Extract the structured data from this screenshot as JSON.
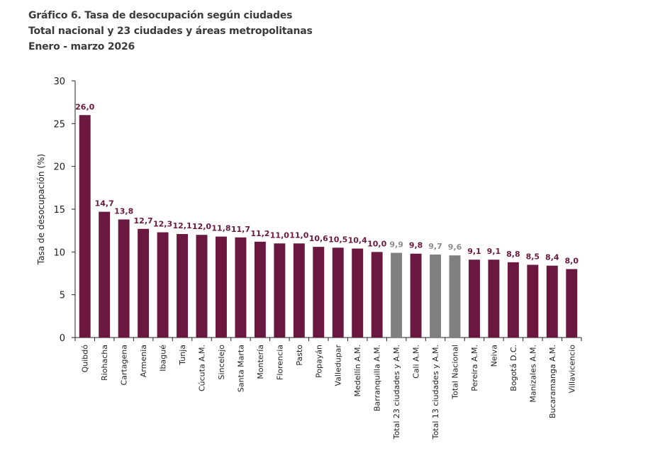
{
  "header": {
    "title_line1": "Gráfico 6. Tasa de desocupación según ciudades",
    "title_line2": "Total nacional y 23 ciudades y áreas metropolitanas",
    "title_line3": "Enero - marzo 2026"
  },
  "colors": {
    "city_bar": "#6b1840",
    "total_bar": "#808080",
    "city_label": "#6b1840",
    "total_label": "#8c8c8c",
    "axis": "#222222"
  },
  "chart_data": {
    "type": "bar",
    "title": "Gráfico 6. Tasa de desocupación según ciudades",
    "subtitle": "Total nacional y 23 ciudades y áreas metropolitanas — Enero - marzo 2026",
    "xlabel": "",
    "ylabel": "Tasa de desocupación (%)",
    "ylim": [
      0,
      30
    ],
    "yticks": [
      0,
      5,
      10,
      15,
      20,
      25,
      30
    ],
    "grid": false,
    "legend": "none",
    "categories": [
      "Quibdó",
      "Riohacha",
      "Cartagena",
      "Armenia",
      "Ibagué",
      "Tunja",
      "Cúcuta A.M.",
      "Sincelejo",
      "Santa Marta",
      "Montería",
      "Florencia",
      "Pasto",
      "Popayán",
      "Valledupar",
      "Medellín A.M.",
      "Barranquilla A.M.",
      "Total 23 ciudades y A.M.",
      "Cali A.M.",
      "Total 13 ciudades y A.M.",
      "Total Nacional",
      "Pereira A.M.",
      "Neiva",
      "Bogotá D.C.",
      "Manizales A.M.",
      "Bucaramanga A.M.",
      "Villavicencio"
    ],
    "values": [
      26.0,
      14.7,
      13.8,
      12.7,
      12.3,
      12.1,
      12.0,
      11.8,
      11.7,
      11.2,
      11.0,
      11.0,
      10.6,
      10.5,
      10.4,
      10.0,
      9.9,
      9.8,
      9.7,
      9.6,
      9.1,
      9.1,
      8.8,
      8.5,
      8.4,
      8.0
    ],
    "value_labels": [
      "26,0",
      "14,7",
      "13,8",
      "12,7",
      "12,3",
      "12,1",
      "12,0",
      "11,8",
      "11,7",
      "11,2",
      "11,0",
      "11,0",
      "10,6",
      "10,5",
      "10,4",
      "10,0",
      "9,9",
      "9,8",
      "9,7",
      "9,6",
      "9,1",
      "9,1",
      "8,8",
      "8,5",
      "8,4",
      "8,0"
    ],
    "is_total": [
      false,
      false,
      false,
      false,
      false,
      false,
      false,
      false,
      false,
      false,
      false,
      false,
      false,
      false,
      false,
      false,
      true,
      false,
      true,
      true,
      false,
      false,
      false,
      false,
      false,
      false
    ]
  }
}
